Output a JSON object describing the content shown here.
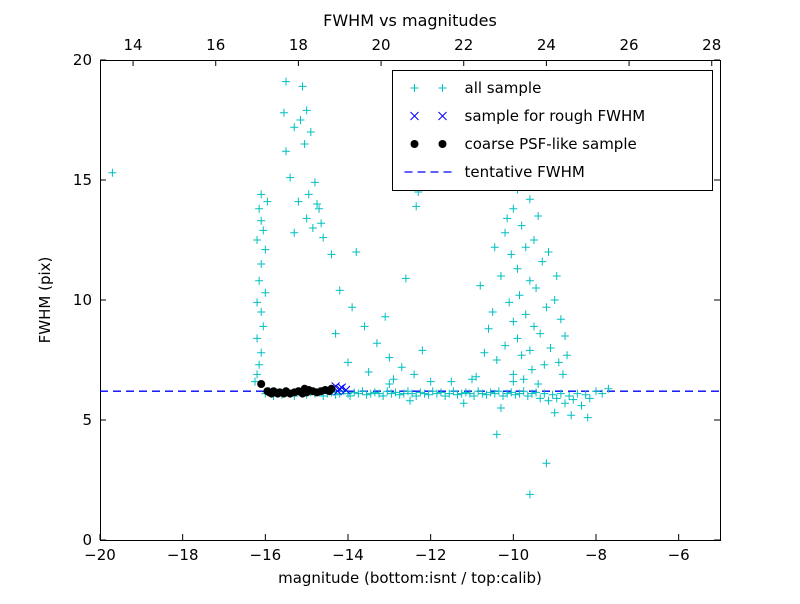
{
  "figure": {
    "title": "FWHM vs magnitudes",
    "xlabel": "magnitude (bottom:isnt / top:calib)",
    "ylabel": "FWHM (pix)"
  },
  "chart_data": {
    "type": "scatter",
    "title": "FWHM vs magnitudes",
    "xlabel": "magnitude (bottom:isnt / top:calib)",
    "ylabel": "FWHM (pix)",
    "xlim": [
      -20,
      -5
    ],
    "ylim": [
      0,
      20
    ],
    "grid": false,
    "legend_position": "upper right",
    "bottom_ticks": {
      "values": [
        -20,
        -18,
        -16,
        -14,
        -12,
        -10,
        -8,
        -6
      ],
      "labels": [
        "−20",
        "−18",
        "−16",
        "−14",
        "−12",
        "−10",
        "−8",
        "−6"
      ]
    },
    "top_ticks": {
      "axis_offset_from_bottom": 33.2,
      "values": [
        14,
        16,
        18,
        20,
        22,
        24,
        26,
        28
      ],
      "labels": [
        "14",
        "16",
        "18",
        "20",
        "22",
        "24",
        "26",
        "28"
      ]
    },
    "y_ticks": {
      "values": [
        0,
        5,
        10,
        15,
        20
      ],
      "labels": [
        "0",
        "5",
        "10",
        "15",
        "20"
      ]
    },
    "tentative_fwhm_value": 6.2,
    "series": [
      {
        "name": "all sample",
        "marker": "plus",
        "color": "#00bfbf",
        "points": [
          [
            -19.7,
            15.3
          ],
          [
            -16.25,
            6.6
          ],
          [
            -16.2,
            6.9
          ],
          [
            -16.15,
            7.3
          ],
          [
            -16.1,
            7.8
          ],
          [
            -16.2,
            8.4
          ],
          [
            -16.05,
            8.9
          ],
          [
            -16.1,
            9.5
          ],
          [
            -16.2,
            9.9
          ],
          [
            -16.0,
            10.3
          ],
          [
            -16.15,
            10.8
          ],
          [
            -16.1,
            11.5
          ],
          [
            -16.0,
            12.1
          ],
          [
            -16.2,
            12.5
          ],
          [
            -16.05,
            12.9
          ],
          [
            -16.1,
            13.3
          ],
          [
            -16.15,
            13.8
          ],
          [
            -15.95,
            14.1
          ],
          [
            -16.1,
            14.4
          ],
          [
            -15.5,
            19.1
          ],
          [
            -15.1,
            18.9
          ],
          [
            -15.0,
            17.9
          ],
          [
            -15.15,
            17.5
          ],
          [
            -15.3,
            17.2
          ],
          [
            -14.9,
            17.0
          ],
          [
            -15.05,
            16.5
          ],
          [
            -15.5,
            16.2
          ],
          [
            -14.8,
            14.9
          ],
          [
            -14.95,
            14.4
          ],
          [
            -15.2,
            14.1
          ],
          [
            -14.7,
            13.8
          ],
          [
            -15.0,
            13.4
          ],
          [
            -14.85,
            13.0
          ],
          [
            -15.3,
            12.8
          ],
          [
            -14.6,
            12.6
          ],
          [
            -14.75,
            14.0
          ],
          [
            -15.4,
            15.1
          ],
          [
            -14.65,
            13.2
          ],
          [
            -15.55,
            17.8
          ],
          [
            -14.4,
            11.9
          ],
          [
            -14.2,
            10.4
          ],
          [
            -13.9,
            9.7
          ],
          [
            -13.6,
            8.9
          ],
          [
            -13.3,
            8.2
          ],
          [
            -13.0,
            7.6
          ],
          [
            -12.7,
            7.2
          ],
          [
            -12.4,
            6.9
          ],
          [
            -14.0,
            7.4
          ],
          [
            -13.5,
            7.0
          ],
          [
            -12.9,
            6.7
          ],
          [
            -14.3,
            8.6
          ],
          [
            -13.1,
            9.3
          ],
          [
            -12.2,
            7.9
          ],
          [
            -12.6,
            10.9
          ],
          [
            -13.8,
            12.0
          ],
          [
            -12.35,
            13.9
          ],
          [
            -12.3,
            14.5
          ],
          [
            -9.9,
            14.6
          ],
          [
            -9.6,
            14.2
          ],
          [
            -10.0,
            13.8
          ],
          [
            -9.4,
            13.5
          ],
          [
            -9.8,
            13.1
          ],
          [
            -10.2,
            12.8
          ],
          [
            -9.5,
            12.5
          ],
          [
            -9.7,
            12.2
          ],
          [
            -10.05,
            11.9
          ],
          [
            -9.3,
            11.6
          ],
          [
            -9.9,
            11.3
          ],
          [
            -10.3,
            11.0
          ],
          [
            -9.6,
            10.8
          ],
          [
            -9.45,
            10.5
          ],
          [
            -9.85,
            10.2
          ],
          [
            -10.1,
            9.9
          ],
          [
            -9.2,
            9.7
          ],
          [
            -9.7,
            9.4
          ],
          [
            -10.0,
            9.1
          ],
          [
            -9.5,
            8.9
          ],
          [
            -9.35,
            8.6
          ],
          [
            -9.9,
            8.4
          ],
          [
            -10.2,
            8.1
          ],
          [
            -9.6,
            7.9
          ],
          [
            -9.8,
            7.7
          ],
          [
            -10.4,
            7.5
          ],
          [
            -9.25,
            7.3
          ],
          [
            -9.55,
            7.1
          ],
          [
            -10.0,
            6.9
          ],
          [
            -9.75,
            6.7
          ],
          [
            -9.4,
            6.5
          ],
          [
            -10.6,
            8.8
          ],
          [
            -10.7,
            7.8
          ],
          [
            -10.5,
            9.5
          ],
          [
            -10.8,
            10.6
          ],
          [
            -10.9,
            6.8
          ],
          [
            -8.9,
            7.4
          ],
          [
            -8.8,
            6.9
          ],
          [
            -9.1,
            8.0
          ],
          [
            -8.7,
            7.7
          ],
          [
            -9.0,
            10.0
          ],
          [
            -8.85,
            9.2
          ],
          [
            -9.15,
            12.0
          ],
          [
            -8.95,
            11.0
          ],
          [
            -10.15,
            13.4
          ],
          [
            -10.45,
            12.2
          ],
          [
            -8.75,
            8.5
          ],
          [
            -10.4,
            4.4
          ],
          [
            -9.6,
            1.9
          ],
          [
            -9.2,
            3.2
          ],
          [
            -8.2,
            5.1
          ],
          [
            -9.0,
            5.3
          ],
          [
            -8.6,
            5.2
          ],
          [
            -10.3,
            5.5
          ],
          [
            -11.2,
            5.7
          ],
          [
            -12.0,
            6.6
          ],
          [
            -11.0,
            6.7
          ],
          [
            -10.0,
            6.6
          ],
          [
            -13.0,
            6.5
          ],
          [
            -11.5,
            6.6
          ],
          [
            -12.5,
            5.8
          ],
          [
            -16.0,
            6.1
          ],
          [
            -15.9,
            6.2
          ],
          [
            -15.8,
            6.0
          ],
          [
            -15.7,
            6.15
          ],
          [
            -15.6,
            6.05
          ],
          [
            -15.5,
            6.2
          ],
          [
            -15.4,
            6.1
          ],
          [
            -15.3,
            6.0
          ],
          [
            -15.2,
            6.2
          ],
          [
            -15.1,
            6.1
          ],
          [
            -15.0,
            6.05
          ],
          [
            -14.9,
            6.15
          ],
          [
            -14.8,
            6.1
          ],
          [
            -14.7,
            6.2
          ],
          [
            -14.6,
            6.0
          ],
          [
            -14.5,
            6.1
          ],
          [
            -14.4,
            6.15
          ],
          [
            -14.3,
            6.05
          ],
          [
            -14.2,
            6.1
          ],
          [
            -14.1,
            6.2
          ],
          [
            -14.0,
            6.1
          ],
          [
            -13.95,
            6.0
          ],
          [
            -13.85,
            6.15
          ],
          [
            -13.75,
            6.1
          ],
          [
            -13.65,
            6.2
          ],
          [
            -13.55,
            6.05
          ],
          [
            -13.45,
            6.1
          ],
          [
            -13.35,
            6.15
          ],
          [
            -13.25,
            6.1
          ],
          [
            -13.15,
            6.0
          ],
          [
            -13.05,
            6.2
          ],
          [
            -12.95,
            6.1
          ],
          [
            -12.85,
            6.15
          ],
          [
            -12.75,
            6.05
          ],
          [
            -12.65,
            6.1
          ],
          [
            -12.55,
            6.2
          ],
          [
            -12.45,
            6.1
          ],
          [
            -12.35,
            6.0
          ],
          [
            -12.25,
            6.15
          ],
          [
            -12.15,
            6.1
          ],
          [
            -12.05,
            6.05
          ],
          [
            -11.95,
            6.2
          ],
          [
            -11.85,
            6.1
          ],
          [
            -11.75,
            6.15
          ],
          [
            -11.65,
            6.0
          ],
          [
            -11.55,
            6.1
          ],
          [
            -11.45,
            6.2
          ],
          [
            -11.35,
            6.05
          ],
          [
            -11.25,
            6.1
          ],
          [
            -11.15,
            6.15
          ],
          [
            -11.05,
            6.1
          ],
          [
            -10.95,
            6.0
          ],
          [
            -10.85,
            6.2
          ],
          [
            -10.75,
            6.1
          ],
          [
            -10.65,
            6.05
          ],
          [
            -10.55,
            6.15
          ],
          [
            -10.45,
            6.1
          ],
          [
            -10.35,
            6.2
          ],
          [
            -10.25,
            6.0
          ],
          [
            -10.15,
            6.1
          ],
          [
            -10.05,
            6.15
          ],
          [
            -9.95,
            6.05
          ],
          [
            -9.85,
            6.1
          ],
          [
            -9.75,
            6.2
          ],
          [
            -9.65,
            6.0
          ],
          [
            -9.55,
            6.1
          ],
          [
            -9.45,
            6.15
          ],
          [
            -9.35,
            5.9
          ],
          [
            -9.25,
            6.1
          ],
          [
            -9.15,
            5.8
          ],
          [
            -9.05,
            6.05
          ],
          [
            -8.95,
            5.9
          ],
          [
            -8.85,
            6.1
          ],
          [
            -8.75,
            5.7
          ],
          [
            -8.65,
            6.0
          ],
          [
            -8.55,
            5.85
          ],
          [
            -8.45,
            6.1
          ],
          [
            -8.35,
            5.6
          ],
          [
            -8.25,
            6.05
          ],
          [
            -8.15,
            5.9
          ],
          [
            -8.0,
            6.2
          ],
          [
            -7.85,
            6.1
          ],
          [
            -7.7,
            6.3
          ]
        ]
      },
      {
        "name": "sample for rough FWHM",
        "marker": "x",
        "color": "#0000ff",
        "points": [
          [
            -14.3,
            6.4
          ],
          [
            -14.2,
            6.3
          ],
          [
            -14.15,
            6.35
          ],
          [
            -14.05,
            6.25
          ],
          [
            -14.25,
            6.2
          ]
        ]
      },
      {
        "name": "coarse PSF-like sample",
        "marker": "dot",
        "color": "#000000",
        "points": [
          [
            -16.1,
            6.5
          ],
          [
            -15.95,
            6.2
          ],
          [
            -15.9,
            6.15
          ],
          [
            -15.85,
            6.1
          ],
          [
            -15.8,
            6.2
          ],
          [
            -15.7,
            6.1
          ],
          [
            -15.65,
            6.15
          ],
          [
            -15.55,
            6.1
          ],
          [
            -15.5,
            6.2
          ],
          [
            -15.4,
            6.1
          ],
          [
            -15.3,
            6.15
          ],
          [
            -15.2,
            6.2
          ],
          [
            -15.1,
            6.1
          ],
          [
            -15.0,
            6.15
          ],
          [
            -14.95,
            6.25
          ],
          [
            -14.85,
            6.2
          ],
          [
            -14.75,
            6.15
          ],
          [
            -14.65,
            6.2
          ],
          [
            -14.55,
            6.25
          ],
          [
            -14.45,
            6.2
          ],
          [
            -14.4,
            6.3
          ],
          [
            -15.05,
            6.3
          ]
        ]
      },
      {
        "name": "tentative FWHM",
        "marker": "dashed-line",
        "color": "#0000ff",
        "y": 6.2
      }
    ],
    "legend_entries": [
      "all sample",
      "sample for rough FWHM",
      "coarse PSF-like sample",
      "tentative FWHM"
    ]
  }
}
